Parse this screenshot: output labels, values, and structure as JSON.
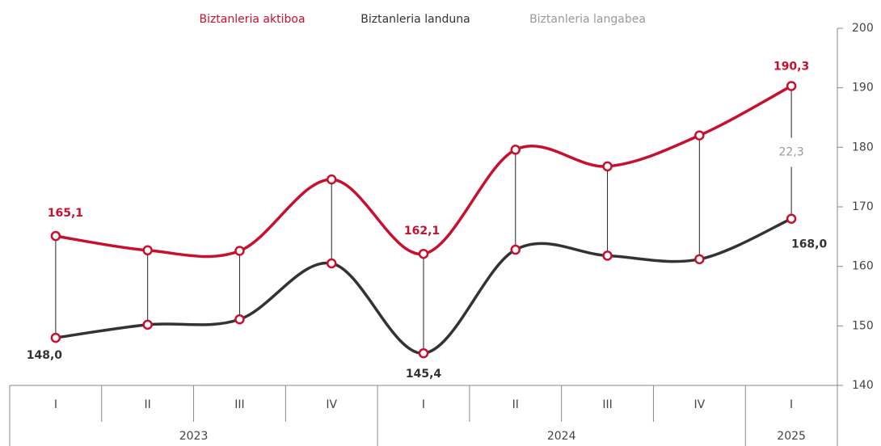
{
  "chart_data": {
    "type": "line",
    "categories": [
      "I",
      "II",
      "III",
      "IV",
      "I",
      "II",
      "III",
      "IV",
      "I"
    ],
    "years": [
      "2023",
      "2024",
      "2025"
    ],
    "year_sizes": [
      4,
      4,
      1
    ],
    "series": [
      {
        "name": "Biztanleria aktiboa",
        "color": "#c8102e",
        "values": [
          165.1,
          162.7,
          162.6,
          174.6,
          162.1,
          179.6,
          176.8,
          182.0,
          190.3
        ],
        "value_labels": [
          "165,1",
          null,
          null,
          null,
          "162,1",
          null,
          null,
          null,
          "190,3"
        ]
      },
      {
        "name": "Biztanleria landuna",
        "color": "#333333",
        "values": [
          148.0,
          150.2,
          151.1,
          160.5,
          145.4,
          162.8,
          161.8,
          161.2,
          168.0
        ],
        "value_labels": [
          "148,0",
          null,
          null,
          null,
          "145,4",
          null,
          null,
          null,
          "168,0"
        ]
      },
      {
        "name": "Biztanleria langabea",
        "color": "#999999",
        "values": [
          17.1,
          12.5,
          11.5,
          14.1,
          16.7,
          16.8,
          15.0,
          20.8,
          22.3
        ],
        "value_labels": [
          null,
          null,
          null,
          null,
          null,
          null,
          null,
          null,
          "22,3"
        ]
      }
    ],
    "ylim": [
      140,
      200
    ],
    "yticks": [
      140,
      150,
      160,
      170,
      180,
      190,
      200
    ],
    "y_axis_side": "right"
  }
}
